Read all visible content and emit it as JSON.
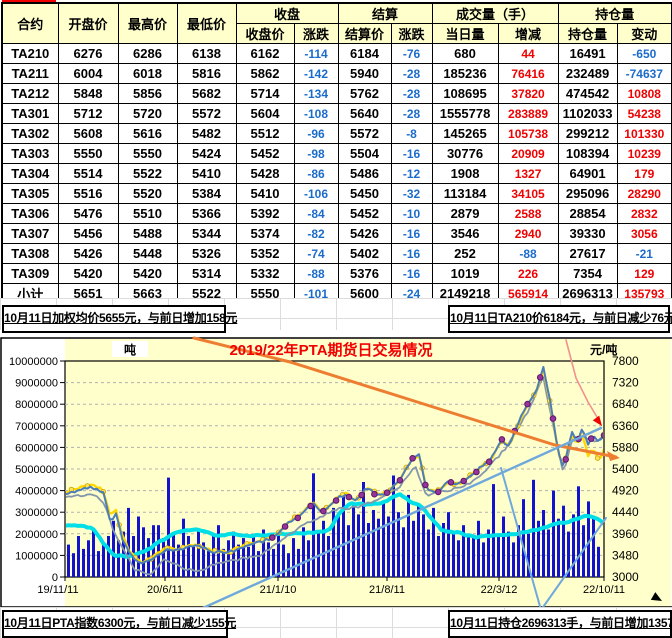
{
  "table": {
    "headers": {
      "contract": "合约",
      "open": "开盘价",
      "high": "最高价",
      "low": "最低价",
      "close_group": "收盘",
      "close": "收盘价",
      "chg": "涨跌",
      "settle_group": "结算",
      "settle": "结算价",
      "chg2": "涨跌",
      "volume_group": "成交量（手）",
      "volume": "当日量",
      "vol_chg": "增减",
      "oi_group": "持仓量",
      "oi": "持仓量",
      "oi_chg": "变动"
    },
    "rows": [
      [
        "TA210",
        6276,
        6286,
        6138,
        6162,
        -114,
        6184,
        -76,
        680,
        44,
        16491,
        -650
      ],
      [
        "TA211",
        6004,
        6018,
        5816,
        5862,
        -142,
        5940,
        -28,
        185236,
        76416,
        232489,
        -74637
      ],
      [
        "TA212",
        5848,
        5856,
        5682,
        5714,
        -134,
        5762,
        -28,
        108695,
        37820,
        474542,
        10808
      ],
      [
        "TA301",
        5712,
        5720,
        5572,
        5604,
        -108,
        5640,
        -28,
        1555778,
        283889,
        1102033,
        54238
      ],
      [
        "TA302",
        5608,
        5616,
        5482,
        5512,
        -96,
        5572,
        -8,
        145265,
        105738,
        299212,
        101330
      ],
      [
        "TA303",
        5550,
        5550,
        5424,
        5452,
        -98,
        5504,
        -16,
        30776,
        20909,
        108394,
        10239
      ],
      [
        "TA304",
        5514,
        5522,
        5410,
        5428,
        -86,
        5486,
        -12,
        1908,
        1327,
        64901,
        179
      ],
      [
        "TA305",
        5516,
        5520,
        5384,
        5410,
        -106,
        5450,
        -32,
        113184,
        34105,
        295096,
        28290
      ],
      [
        "TA306",
        5476,
        5510,
        5366,
        5392,
        -84,
        5452,
        -10,
        2879,
        2588,
        28854,
        2832
      ],
      [
        "TA307",
        5456,
        5488,
        5344,
        5374,
        -82,
        5426,
        -16,
        3546,
        2940,
        39330,
        3056
      ],
      [
        "TA308",
        5426,
        5448,
        5326,
        5352,
        -74,
        5402,
        -16,
        252,
        -88,
        27617,
        -21
      ],
      [
        "TA309",
        5420,
        5420,
        5314,
        5332,
        -88,
        5376,
        -16,
        1019,
        226,
        7354,
        129
      ],
      [
        "小计",
        5651,
        5663,
        5522,
        5550,
        -101,
        5600,
        -24,
        2149218,
        565914,
        2696313,
        135793
      ]
    ]
  },
  "banners": {
    "top_left": "10月11日加权均价5655元，与前日增加158元",
    "top_right": "10月11日TA210价6184元，与前日减少76元",
    "bottom_left": "10月11日PTA指数6300元，与前日减少155元",
    "bottom_right": "10月11日持仓2696313手，与前日增加135793手"
  },
  "chart_data": {
    "type": "combo",
    "title": "2019/22年PTA期货日交易情况",
    "left_axis": {
      "label": "吨",
      "min": 0,
      "max": 10000000,
      "step": 1000000,
      "ticks": [
        "10000000",
        "9000000",
        "8000000",
        "7000000",
        "6000000",
        "5000000",
        "4000000",
        "3000000",
        "2000000",
        "1000000",
        "0"
      ]
    },
    "right_axis": {
      "label": "元/吨",
      "min": 3000,
      "max": 7800,
      "step": 480,
      "ticks": [
        "7800",
        "7320",
        "6840",
        "6360",
        "5880",
        "5400",
        "4920",
        "4440",
        "3960",
        "3480",
        "3000"
      ]
    },
    "x_ticks": [
      "19/11/11",
      "20/6/11",
      "21/1/10",
      "21/8/11",
      "22/3/12",
      "22/10/11"
    ],
    "note": "daily 2019-11-11 to 2022-10-11 series approximated by waypoints [x-fraction, value]; bars = daily volume (left axis, millions)",
    "plot_bg": "#ffffcc",
    "grid_color": "#b0b0b0",
    "bar_color": "#1212cf",
    "series": [
      {
        "name": "volume-ma-cyan",
        "axis": "left",
        "color": "#00dfe8",
        "width": 4,
        "noise": 0.06,
        "waypoints": [
          [
            0,
            2.4
          ],
          [
            0.03,
            2.35
          ],
          [
            0.05,
            2.3
          ],
          [
            0.07,
            1.6
          ],
          [
            0.09,
            1.0
          ],
          [
            0.12,
            0.95
          ],
          [
            0.15,
            1.2
          ],
          [
            0.18,
            1.7
          ],
          [
            0.21,
            2.1
          ],
          [
            0.25,
            2.2
          ],
          [
            0.28,
            1.9
          ],
          [
            0.31,
            2.0
          ],
          [
            0.34,
            1.9
          ],
          [
            0.38,
            1.95
          ],
          [
            0.42,
            2.0
          ],
          [
            0.46,
            2.05
          ],
          [
            0.49,
            2.15
          ],
          [
            0.51,
            3.0
          ],
          [
            0.53,
            3.4
          ],
          [
            0.56,
            3.35
          ],
          [
            0.59,
            3.45
          ],
          [
            0.62,
            3.85
          ],
          [
            0.64,
            3.5
          ],
          [
            0.66,
            3.3
          ],
          [
            0.68,
            2.7
          ],
          [
            0.7,
            2.15
          ],
          [
            0.73,
            2.05
          ],
          [
            0.76,
            1.85
          ],
          [
            0.79,
            1.9
          ],
          [
            0.82,
            1.95
          ],
          [
            0.85,
            2.05
          ],
          [
            0.88,
            2.2
          ],
          [
            0.91,
            2.45
          ],
          [
            0.94,
            2.6
          ],
          [
            0.97,
            2.85
          ],
          [
            0.99,
            2.7
          ],
          [
            1,
            2.45
          ]
        ]
      },
      {
        "name": "index-gray",
        "axis": "right",
        "color": "#8496ab",
        "width": 1.8,
        "noise": 55,
        "waypoints": [
          [
            0,
            4760
          ],
          [
            0.04,
            4830
          ],
          [
            0.06,
            4780
          ],
          [
            0.075,
            4600
          ],
          [
            0.09,
            4000
          ],
          [
            0.11,
            3600
          ],
          [
            0.13,
            3150
          ],
          [
            0.16,
            3060
          ],
          [
            0.186,
            3400
          ],
          [
            0.22,
            3180
          ],
          [
            0.25,
            3120
          ],
          [
            0.28,
            3300
          ],
          [
            0.32,
            3380
          ],
          [
            0.36,
            3480
          ],
          [
            0.4,
            3800
          ],
          [
            0.44,
            4150
          ],
          [
            0.47,
            4300
          ],
          [
            0.5,
            4500
          ],
          [
            0.54,
            4550
          ],
          [
            0.58,
            4700
          ],
          [
            0.62,
            5000
          ],
          [
            0.65,
            5450
          ],
          [
            0.67,
            4800
          ],
          [
            0.7,
            4900
          ],
          [
            0.74,
            5000
          ],
          [
            0.78,
            5350
          ],
          [
            0.82,
            5900
          ],
          [
            0.86,
            6700
          ],
          [
            0.887,
            7450
          ],
          [
            0.91,
            6100
          ],
          [
            0.925,
            5300
          ],
          [
            0.94,
            6050
          ],
          [
            0.96,
            6150
          ],
          [
            0.98,
            6000
          ],
          [
            1,
            6100
          ]
        ]
      },
      {
        "name": "settle-yellow",
        "axis": "right",
        "color": "#ffd800",
        "width": 2.4,
        "noise": 60,
        "marker": {
          "every": 5,
          "r": 2.3,
          "fill": "#ffe54f",
          "stroke": "#c99d00"
        },
        "waypoints": [
          [
            0,
            4880
          ],
          [
            0.02,
            4950
          ],
          [
            0.045,
            5050
          ],
          [
            0.06,
            5000
          ],
          [
            0.07,
            4950
          ],
          [
            0.084,
            4350
          ],
          [
            0.095,
            4480
          ],
          [
            0.105,
            3950
          ],
          [
            0.12,
            3560
          ],
          [
            0.14,
            3330
          ],
          [
            0.16,
            3430
          ],
          [
            0.186,
            3650
          ],
          [
            0.21,
            3620
          ],
          [
            0.24,
            3720
          ],
          [
            0.27,
            3600
          ],
          [
            0.3,
            3540
          ],
          [
            0.33,
            3700
          ],
          [
            0.36,
            3780
          ],
          [
            0.39,
            3920
          ],
          [
            0.4,
            4060
          ],
          [
            0.42,
            4260
          ],
          [
            0.44,
            4410
          ],
          [
            0.46,
            4660
          ],
          [
            0.475,
            4440
          ],
          [
            0.5,
            4710
          ],
          [
            0.52,
            4860
          ],
          [
            0.54,
            4710
          ],
          [
            0.56,
            4990
          ],
          [
            0.58,
            4830
          ],
          [
            0.6,
            4880
          ],
          [
            0.62,
            5160
          ],
          [
            0.645,
            5640
          ],
          [
            0.658,
            5700
          ],
          [
            0.67,
            4960
          ],
          [
            0.69,
            4890
          ],
          [
            0.71,
            5110
          ],
          [
            0.73,
            5060
          ],
          [
            0.75,
            5260
          ],
          [
            0.77,
            5430
          ],
          [
            0.79,
            5610
          ],
          [
            0.81,
            6040
          ],
          [
            0.825,
            5890
          ],
          [
            0.84,
            6380
          ],
          [
            0.86,
            6880
          ],
          [
            0.875,
            7130
          ],
          [
            0.887,
            7650
          ],
          [
            0.9,
            6880
          ],
          [
            0.915,
            5790
          ],
          [
            0.925,
            5410
          ],
          [
            0.94,
            6200
          ],
          [
            0.95,
            5900
          ],
          [
            0.96,
            6230
          ],
          [
            0.97,
            5700
          ],
          [
            0.98,
            5900
          ],
          [
            0.99,
            5550
          ],
          [
            1,
            5820
          ]
        ]
      },
      {
        "name": "close-blue",
        "axis": "right",
        "color": "#4a7ebb",
        "width": 2,
        "noise": 65,
        "marker2": {
          "from": 0.37,
          "every": 4,
          "r": 2.8,
          "fill": "#93359b",
          "stroke": "#5e1668"
        },
        "waypoints": [
          [
            0,
            4830
          ],
          [
            0.02,
            4900
          ],
          [
            0.045,
            5000
          ],
          [
            0.06,
            4950
          ],
          [
            0.07,
            4900
          ],
          [
            0.084,
            4250
          ],
          [
            0.095,
            4400
          ],
          [
            0.105,
            3900
          ],
          [
            0.12,
            3500
          ],
          [
            0.14,
            3280
          ],
          [
            0.16,
            3380
          ],
          [
            0.186,
            3600
          ],
          [
            0.21,
            3580
          ],
          [
            0.24,
            3700
          ],
          [
            0.27,
            3580
          ],
          [
            0.3,
            3520
          ],
          [
            0.33,
            3680
          ],
          [
            0.36,
            3760
          ],
          [
            0.39,
            3900
          ],
          [
            0.4,
            4050
          ],
          [
            0.42,
            4250
          ],
          [
            0.44,
            4400
          ],
          [
            0.46,
            4650
          ],
          [
            0.475,
            4420
          ],
          [
            0.5,
            4700
          ],
          [
            0.52,
            4850
          ],
          [
            0.54,
            4700
          ],
          [
            0.56,
            4980
          ],
          [
            0.58,
            4820
          ],
          [
            0.6,
            4870
          ],
          [
            0.62,
            5150
          ],
          [
            0.645,
            5650
          ],
          [
            0.658,
            5720
          ],
          [
            0.67,
            4950
          ],
          [
            0.69,
            4880
          ],
          [
            0.71,
            5100
          ],
          [
            0.73,
            5050
          ],
          [
            0.75,
            5250
          ],
          [
            0.77,
            5420
          ],
          [
            0.79,
            5600
          ],
          [
            0.81,
            6050
          ],
          [
            0.825,
            5900
          ],
          [
            0.84,
            6400
          ],
          [
            0.86,
            6900
          ],
          [
            0.875,
            7150
          ],
          [
            0.887,
            7700
          ],
          [
            0.9,
            6900
          ],
          [
            0.915,
            5800
          ],
          [
            0.925,
            5420
          ],
          [
            0.94,
            6250
          ],
          [
            0.95,
            5950
          ],
          [
            0.96,
            6300
          ],
          [
            0.97,
            5950
          ],
          [
            0.98,
            6150
          ],
          [
            0.99,
            5980
          ],
          [
            1,
            6160
          ]
        ]
      }
    ],
    "volume_bars_millions": [
      1.5,
      1.1,
      1.9,
      1.3,
      1.7,
      2.2,
      1.2,
      1.5,
      1.9,
      2.6,
      1.7,
      2.1,
      3.2,
      1.9,
      2.8,
      2.3,
      1.8,
      2.4,
      2.4,
      1.8,
      4.6,
      2.0,
      1.5,
      2.7,
      1.9,
      1.4,
      2.2,
      1.6,
      1.2,
      1.9,
      2.4,
      1.3,
      1.7,
      2.1,
      1.5,
      1.8,
      1.4,
      1.9,
      1.2,
      2.2,
      1.6,
      1.3,
      2.0,
      1.5,
      1.1,
      1.8,
      1.3,
      2.3,
      1.7,
      4.8,
      2.1,
      2.6,
      1.9,
      3.2,
      2.8,
      3.9,
      2.4,
      3.3,
      2.9,
      4.4,
      2.5,
      3.1,
      2.7,
      3.5,
      2.8,
      4.7,
      3.0,
      2.3,
      3.8,
      2.6,
      3.4,
      2.9,
      2.2,
      3.2,
      1.9,
      2.5,
      3.0,
      2.1,
      1.7,
      2.4,
      2.0,
      1.8,
      2.6,
      1.6,
      2.2,
      4.3,
      1.9,
      2.8,
      2.1,
      1.6,
      2.4,
      3.6,
      2.0,
      4.5,
      2.6,
      3.1,
      2.2,
      4.0,
      2.7,
      3.3,
      2.1,
      2.9,
      4.2,
      2.4,
      3.5,
      2.8,
      1.4
    ],
    "trendlines": [
      {
        "name": "orange-trendline",
        "color": "#ed7d31",
        "width": 3,
        "points": [
          [
            194,
            8
          ],
          [
            290,
            32
          ],
          [
            430,
            76
          ],
          [
            555,
            115
          ],
          [
            616,
            127
          ]
        ],
        "arrow": [
          [
            620,
            128
          ],
          [
            607,
            121
          ],
          [
            610,
            131
          ]
        ],
        "arrow_color": "#ed7d31"
      },
      {
        "name": "pink-trendline",
        "color": "#f29090",
        "width": 1.6,
        "points": [
          [
            566,
            10
          ],
          [
            576,
            48
          ],
          [
            588,
            72
          ],
          [
            600,
            92
          ]
        ],
        "arrow": [
          [
            602,
            96
          ],
          [
            592.8,
            90.4
          ],
          [
            599.2,
            85.6
          ]
        ],
        "arrow_color": "#f00000"
      },
      {
        "name": "support-trendline",
        "color": "#6fa8dc",
        "width": 2.4,
        "points": [
          [
            203,
            278
          ],
          [
            601,
            98
          ]
        ]
      },
      {
        "name": "fan-line-down",
        "color": "#6fa8dc",
        "width": 2,
        "points": [
          [
            501,
            138
          ],
          [
            541,
            280
          ]
        ]
      },
      {
        "name": "fan-line-up",
        "color": "#6fa8dc",
        "width": 2,
        "points": [
          [
            541,
            280
          ],
          [
            606,
            188
          ]
        ],
        "arrow": [
          [
            662,
            271
          ],
          [
            650.8,
            269.9
          ],
          [
            655.3,
            262.1
          ]
        ],
        "arrow_color": "#000000"
      }
    ]
  }
}
